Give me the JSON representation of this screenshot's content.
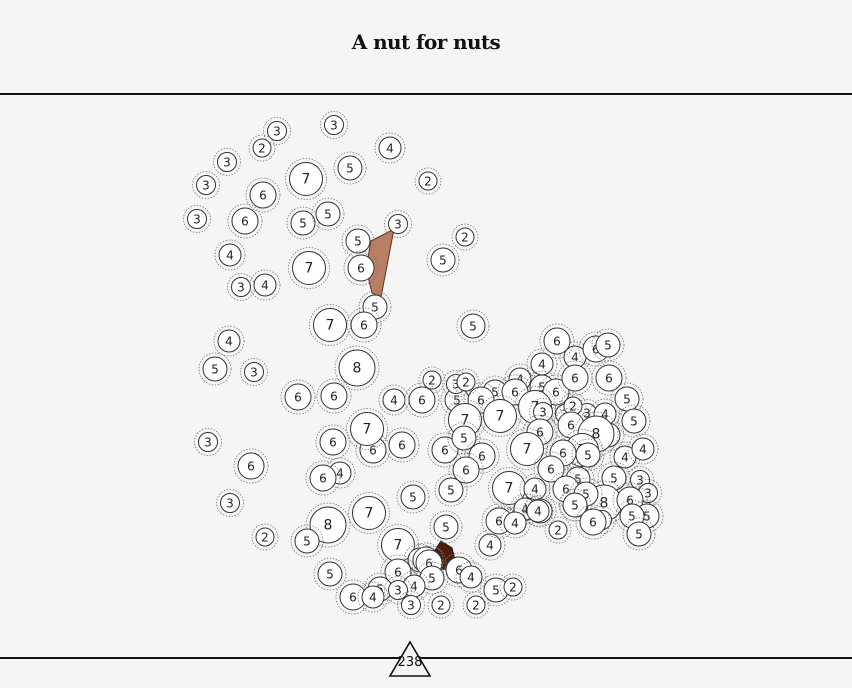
{
  "title": "A nut for nuts",
  "moves_remaining": "238",
  "colors": {
    "background": "#f6f5f6",
    "nut_fill": "#ffffff",
    "nut_stroke": "#333333",
    "selected_piece_light": "#b97f64",
    "selected_piece_dark": "#4a1e0a"
  },
  "board": {
    "nuts": [
      {
        "n": "3"
      },
      {
        "n": "3"
      },
      {
        "n": "2"
      },
      {
        "n": "4"
      },
      {
        "n": "3"
      },
      {
        "n": "5"
      },
      {
        "n": "3"
      },
      {
        "n": "7"
      },
      {
        "n": "6"
      },
      {
        "n": "2"
      },
      {
        "n": "3"
      },
      {
        "n": "6"
      },
      {
        "n": "5"
      },
      {
        "n": "5"
      },
      {
        "n": "3"
      },
      {
        "n": "5"
      },
      {
        "n": "2"
      },
      {
        "n": "6"
      },
      {
        "n": "7"
      },
      {
        "n": "4"
      },
      {
        "n": "5"
      },
      {
        "n": "3"
      },
      {
        "n": "4"
      },
      {
        "n": "5"
      },
      {
        "n": "6"
      },
      {
        "n": "7"
      },
      {
        "n": "5"
      },
      {
        "n": "4"
      },
      {
        "n": "8"
      },
      {
        "n": "5"
      },
      {
        "n": "3"
      },
      {
        "n": "6"
      },
      {
        "n": "6"
      },
      {
        "n": "3"
      },
      {
        "n": "6"
      },
      {
        "n": "6"
      },
      {
        "n": "6"
      },
      {
        "n": "4"
      },
      {
        "n": "7"
      },
      {
        "n": "6"
      },
      {
        "n": "6"
      },
      {
        "n": "3"
      },
      {
        "n": "5"
      },
      {
        "n": "7"
      },
      {
        "n": "8"
      },
      {
        "n": "2"
      },
      {
        "n": "5"
      },
      {
        "n": "7"
      },
      {
        "n": "5"
      },
      {
        "n": "5"
      },
      {
        "n": "5"
      },
      {
        "n": "4"
      },
      {
        "n": "5"
      },
      {
        "n": "2"
      },
      {
        "n": "3"
      },
      {
        "n": "4"
      },
      {
        "n": "4"
      },
      {
        "n": "5"
      },
      {
        "n": "6"
      },
      {
        "n": "2"
      },
      {
        "n": "6"
      },
      {
        "n": "5"
      },
      {
        "n": "6"
      },
      {
        "n": "6"
      },
      {
        "n": "7"
      },
      {
        "n": "4"
      },
      {
        "n": "6"
      },
      {
        "n": "6"
      },
      {
        "n": "5"
      },
      {
        "n": "6"
      },
      {
        "n": "6"
      },
      {
        "n": "5"
      },
      {
        "n": "7"
      },
      {
        "n": "7"
      },
      {
        "n": "5"
      },
      {
        "n": "3"
      },
      {
        "n": "4"
      },
      {
        "n": "3"
      },
      {
        "n": "2"
      },
      {
        "n": "3"
      },
      {
        "n": "6"
      },
      {
        "n": "5"
      },
      {
        "n": "8"
      },
      {
        "n": "7"
      },
      {
        "n": "6"
      },
      {
        "n": "6"
      },
      {
        "n": "5"
      },
      {
        "n": "6"
      },
      {
        "n": "7"
      },
      {
        "n": "4"
      },
      {
        "n": "4"
      },
      {
        "n": "6"
      },
      {
        "n": "6"
      },
      {
        "n": "5"
      },
      {
        "n": "7"
      },
      {
        "n": "4"
      },
      {
        "n": "6"
      },
      {
        "n": "5"
      },
      {
        "n": "5"
      },
      {
        "n": "3"
      },
      {
        "n": "5"
      },
      {
        "n": "8"
      },
      {
        "n": "6"
      },
      {
        "n": "4"
      },
      {
        "n": "5"
      },
      {
        "n": "6"
      },
      {
        "n": "2"
      },
      {
        "n": "4"
      },
      {
        "n": "3"
      },
      {
        "n": "6"
      },
      {
        "n": "5"
      },
      {
        "n": "3"
      },
      {
        "n": "5"
      },
      {
        "n": "5"
      },
      {
        "n": "5"
      },
      {
        "n": "4"
      },
      {
        "n": "4"
      },
      {
        "n": "6"
      },
      {
        "n": "4"
      },
      {
        "n": "6"
      },
      {
        "n": "2"
      },
      {
        "n": "5"
      },
      {
        "n": "5"
      },
      {
        "n": "6"
      },
      {
        "n": "6"
      },
      {
        "n": "6"
      },
      {
        "n": "6"
      },
      {
        "n": "5"
      },
      {
        "n": "4"
      },
      {
        "n": "6"
      },
      {
        "n": "5"
      },
      {
        "n": "4"
      },
      {
        "n": "4"
      },
      {
        "n": "3"
      },
      {
        "n": "5"
      },
      {
        "n": "2"
      },
      {
        "n": "3"
      },
      {
        "n": "2"
      },
      {
        "n": "2"
      }
    ]
  }
}
